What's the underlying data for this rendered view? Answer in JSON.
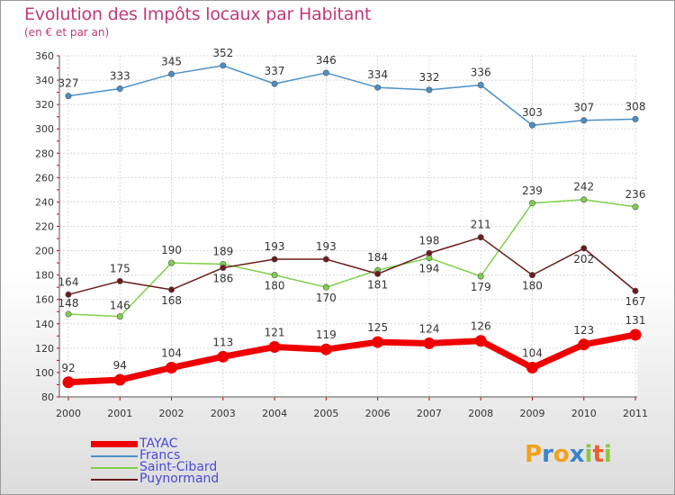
{
  "chart_data": {
    "type": "line",
    "title": "Evolution des Impôts locaux par Habitant",
    "subtitle": "(en € et par an)",
    "xlabel": "",
    "ylabel": "",
    "categories": [
      "2000",
      "2001",
      "2002",
      "2003",
      "2004",
      "2005",
      "2006",
      "2007",
      "2008",
      "2009",
      "2010",
      "2011"
    ],
    "ylim": [
      80,
      360
    ],
    "yticks": [
      "80",
      "100",
      "120",
      "140",
      "160",
      "180",
      "200",
      "220",
      "240",
      "260",
      "280",
      "300",
      "320",
      "340",
      "360"
    ],
    "grid": true,
    "legend_position": "bottom-left",
    "series": [
      {
        "name": "TAYAC",
        "color": "#ee0000",
        "values": [
          92,
          94,
          104,
          113,
          121,
          119,
          125,
          124,
          126,
          104,
          123,
          131
        ]
      },
      {
        "name": "Francs",
        "color": "#4a90c8",
        "values": [
          327,
          333,
          345,
          352,
          337,
          346,
          334,
          332,
          336,
          303,
          307,
          308
        ]
      },
      {
        "name": "Saint-Cibard",
        "color": "#7ed04a",
        "values": [
          148,
          146,
          190,
          189,
          180,
          170,
          184,
          194,
          179,
          239,
          242,
          236
        ]
      },
      {
        "name": "Puynormand",
        "color": "#6b1b1b",
        "values": [
          164,
          175,
          168,
          186,
          193,
          193,
          181,
          198,
          211,
          180,
          202,
          167
        ]
      }
    ]
  },
  "logo": {
    "text": "Proxiti",
    "letters": [
      {
        "ch": "P",
        "color": "#f0a21d"
      },
      {
        "ch": "r",
        "color": "#3a84c8"
      },
      {
        "ch": "o",
        "color": "#f0a21d"
      },
      {
        "ch": "x",
        "color": "#3a84c8"
      },
      {
        "ch": "i",
        "color": "#8cc63f"
      },
      {
        "ch": "t",
        "color": "#e8602c"
      },
      {
        "ch": "i",
        "color": "#8cc63f"
      }
    ]
  }
}
